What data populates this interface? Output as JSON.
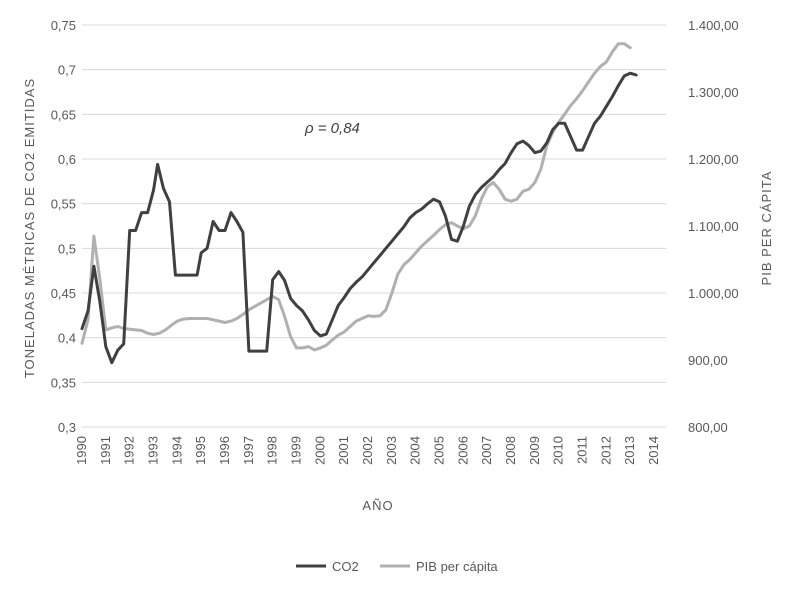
{
  "chart_data": {
    "type": "line",
    "xlabel": "AÑO",
    "ylabel_left": "TONELADAS MÉTRICAS DE CO2 EMITIDAS",
    "ylabel_right": "PIB PER CÁPITA",
    "annotation": "ρ = 0,84",
    "x_ticks": [
      "1990",
      "1991",
      "1992",
      "1993",
      "1994",
      "1995",
      "1996",
      "1997",
      "1998",
      "1999",
      "2000",
      "2001",
      "2002",
      "2003",
      "2004",
      "2005",
      "2006",
      "2007",
      "2008",
      "2009",
      "2010",
      "2011",
      "2012",
      "2013",
      "2014"
    ],
    "y_left": {
      "min": 0.3,
      "max": 0.75,
      "ticks": [
        "0,3",
        "0,35",
        "0,4",
        "0,45",
        "0,5",
        "0,55",
        "0,6",
        "0,65",
        "0,7",
        "0,75"
      ]
    },
    "y_right": {
      "min": 800,
      "max": 1400,
      "ticks": [
        "800,00",
        "900,00",
        "1.000,00",
        "1.100,00",
        "1.200,00",
        "1.300,00",
        "1.400,00"
      ]
    },
    "grid": true,
    "legend_position": "bottom-center",
    "series": [
      {
        "name": "CO2",
        "axis": "left",
        "color": "#404040",
        "points": [
          [
            1990.0,
            0.41
          ],
          [
            1990.25,
            0.43
          ],
          [
            1990.5,
            0.48
          ],
          [
            1990.75,
            0.44
          ],
          [
            1991.0,
            0.39
          ],
          [
            1991.25,
            0.372
          ],
          [
            1991.5,
            0.386
          ],
          [
            1991.75,
            0.393
          ],
          [
            1992.0,
            0.52
          ],
          [
            1992.25,
            0.52
          ],
          [
            1992.5,
            0.54
          ],
          [
            1992.75,
            0.54
          ],
          [
            1993.0,
            0.565
          ],
          [
            1993.17,
            0.594
          ],
          [
            1993.42,
            0.567
          ],
          [
            1993.67,
            0.552
          ],
          [
            1993.92,
            0.47
          ],
          [
            1994.17,
            0.47
          ],
          [
            1994.5,
            0.47
          ],
          [
            1994.83,
            0.47
          ],
          [
            1995.0,
            0.495
          ],
          [
            1995.25,
            0.5
          ],
          [
            1995.5,
            0.53
          ],
          [
            1995.75,
            0.52
          ],
          [
            1996.0,
            0.52
          ],
          [
            1996.25,
            0.54
          ],
          [
            1996.5,
            0.53
          ],
          [
            1996.75,
            0.518
          ],
          [
            1997.0,
            0.385
          ],
          [
            1997.25,
            0.385
          ],
          [
            1997.5,
            0.385
          ],
          [
            1997.75,
            0.385
          ],
          [
            1998.0,
            0.465
          ],
          [
            1998.25,
            0.474
          ],
          [
            1998.5,
            0.464
          ],
          [
            1998.75,
            0.444
          ],
          [
            1999.0,
            0.436
          ],
          [
            1999.25,
            0.43
          ],
          [
            1999.5,
            0.42
          ],
          [
            1999.75,
            0.408
          ],
          [
            2000.0,
            0.402
          ],
          [
            2000.25,
            0.404
          ],
          [
            2000.5,
            0.42
          ],
          [
            2000.75,
            0.436
          ],
          [
            2001.0,
            0.445
          ],
          [
            2001.25,
            0.455
          ],
          [
            2001.5,
            0.462
          ],
          [
            2001.75,
            0.468
          ],
          [
            2002.0,
            0.476
          ],
          [
            2002.25,
            0.484
          ],
          [
            2002.5,
            0.492
          ],
          [
            2002.75,
            0.5
          ],
          [
            2003.0,
            0.508
          ],
          [
            2003.25,
            0.516
          ],
          [
            2003.5,
            0.524
          ],
          [
            2003.75,
            0.534
          ],
          [
            2004.0,
            0.54
          ],
          [
            2004.25,
            0.544
          ],
          [
            2004.5,
            0.55
          ],
          [
            2004.75,
            0.555
          ],
          [
            2005.0,
            0.552
          ],
          [
            2005.25,
            0.536
          ],
          [
            2005.5,
            0.51
          ],
          [
            2005.75,
            0.508
          ],
          [
            2006.0,
            0.525
          ],
          [
            2006.25,
            0.547
          ],
          [
            2006.5,
            0.56
          ],
          [
            2006.75,
            0.568
          ],
          [
            2007.0,
            0.574
          ],
          [
            2007.25,
            0.58
          ],
          [
            2007.5,
            0.588
          ],
          [
            2007.75,
            0.595
          ],
          [
            2008.0,
            0.607
          ],
          [
            2008.25,
            0.617
          ],
          [
            2008.5,
            0.62
          ],
          [
            2008.75,
            0.615
          ],
          [
            2009.0,
            0.607
          ],
          [
            2009.25,
            0.609
          ],
          [
            2009.5,
            0.618
          ],
          [
            2009.75,
            0.633
          ],
          [
            2010.0,
            0.64
          ],
          [
            2010.25,
            0.64
          ],
          [
            2010.5,
            0.625
          ],
          [
            2010.75,
            0.61
          ],
          [
            2011.0,
            0.61
          ],
          [
            2011.25,
            0.625
          ],
          [
            2011.5,
            0.64
          ],
          [
            2011.75,
            0.648
          ],
          [
            2012.0,
            0.659
          ],
          [
            2012.25,
            0.67
          ],
          [
            2012.5,
            0.682
          ],
          [
            2012.75,
            0.693
          ],
          [
            2013.0,
            0.696
          ],
          [
            2013.25,
            0.694
          ]
        ]
      },
      {
        "name": "PIB per cápita",
        "axis": "right",
        "color": "#b0b0b0",
        "points": [
          [
            1990.0,
            925
          ],
          [
            1990.25,
            960
          ],
          [
            1990.5,
            1085
          ],
          [
            1990.75,
            1020
          ],
          [
            1991.0,
            945
          ],
          [
            1991.25,
            948
          ],
          [
            1991.5,
            950
          ],
          [
            1991.75,
            947
          ],
          [
            1992.0,
            946
          ],
          [
            1992.25,
            945
          ],
          [
            1992.5,
            944
          ],
          [
            1992.75,
            940
          ],
          [
            1993.0,
            938
          ],
          [
            1993.25,
            940
          ],
          [
            1993.5,
            945
          ],
          [
            1993.75,
            952
          ],
          [
            1994.0,
            958
          ],
          [
            1994.25,
            961
          ],
          [
            1994.5,
            962
          ],
          [
            1994.75,
            962
          ],
          [
            1995.0,
            962
          ],
          [
            1995.25,
            962
          ],
          [
            1995.5,
            960
          ],
          [
            1995.75,
            958
          ],
          [
            1996.0,
            956
          ],
          [
            1996.25,
            958
          ],
          [
            1996.5,
            962
          ],
          [
            1996.75,
            968
          ],
          [
            1997.0,
            975
          ],
          [
            1997.25,
            980
          ],
          [
            1997.5,
            985
          ],
          [
            1997.75,
            990
          ],
          [
            1998.0,
            995
          ],
          [
            1998.25,
            990
          ],
          [
            1998.5,
            965
          ],
          [
            1998.75,
            935
          ],
          [
            1999.0,
            918
          ],
          [
            1999.25,
            918
          ],
          [
            1999.5,
            920
          ],
          [
            1999.75,
            915
          ],
          [
            2000.0,
            918
          ],
          [
            2000.25,
            922
          ],
          [
            2000.5,
            930
          ],
          [
            2000.75,
            937
          ],
          [
            2001.0,
            942
          ],
          [
            2001.25,
            950
          ],
          [
            2001.5,
            958
          ],
          [
            2001.75,
            962
          ],
          [
            2002.0,
            966
          ],
          [
            2002.25,
            965
          ],
          [
            2002.5,
            966
          ],
          [
            2002.75,
            975
          ],
          [
            2003.0,
            1000
          ],
          [
            2003.25,
            1028
          ],
          [
            2003.5,
            1042
          ],
          [
            2003.75,
            1050
          ],
          [
            2004.0,
            1060
          ],
          [
            2004.25,
            1070
          ],
          [
            2004.5,
            1078
          ],
          [
            2004.75,
            1086
          ],
          [
            2005.0,
            1095
          ],
          [
            2005.25,
            1102
          ],
          [
            2005.5,
            1105
          ],
          [
            2005.75,
            1100
          ],
          [
            2006.0,
            1096
          ],
          [
            2006.25,
            1100
          ],
          [
            2006.5,
            1115
          ],
          [
            2006.75,
            1140
          ],
          [
            2007.0,
            1158
          ],
          [
            2007.25,
            1165
          ],
          [
            2007.5,
            1155
          ],
          [
            2007.75,
            1140
          ],
          [
            2008.0,
            1137
          ],
          [
            2008.25,
            1140
          ],
          [
            2008.5,
            1152
          ],
          [
            2008.75,
            1155
          ],
          [
            2009.0,
            1165
          ],
          [
            2009.25,
            1185
          ],
          [
            2009.5,
            1220
          ],
          [
            2009.75,
            1240
          ],
          [
            2010.0,
            1255
          ],
          [
            2010.25,
            1267
          ],
          [
            2010.5,
            1280
          ],
          [
            2010.75,
            1290
          ],
          [
            2011.0,
            1302
          ],
          [
            2011.25,
            1315
          ],
          [
            2011.5,
            1328
          ],
          [
            2011.75,
            1338
          ],
          [
            2012.0,
            1345
          ],
          [
            2012.25,
            1360
          ],
          [
            2012.5,
            1372
          ],
          [
            2012.75,
            1372
          ],
          [
            2013.0,
            1366
          ]
        ]
      }
    ]
  }
}
